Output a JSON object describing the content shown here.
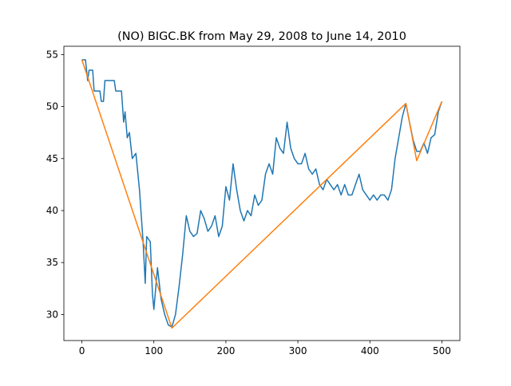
{
  "chart_data": {
    "type": "line",
    "title": "(NO) BIGC.BK from May 29, 2008 to June 14, 2010",
    "xlim": [
      -25,
      525
    ],
    "ylim": [
      27.5,
      55.8
    ],
    "xticks": [
      0,
      100,
      200,
      300,
      400,
      500
    ],
    "yticks": [
      30,
      35,
      40,
      45,
      50,
      55
    ],
    "series": [
      {
        "color": "#1f77b4",
        "x": [
          0,
          5,
          8,
          10,
          15,
          17,
          25,
          27,
          30,
          32,
          45,
          47,
          55,
          58,
          60,
          63,
          66,
          70,
          75,
          80,
          85,
          88,
          90,
          95,
          98,
          100,
          105,
          110,
          115,
          120,
          125,
          130,
          135,
          140,
          145,
          150,
          155,
          160,
          165,
          170,
          175,
          180,
          185,
          190,
          195,
          200,
          205,
          210,
          215,
          220,
          225,
          230,
          235,
          240,
          245,
          250,
          255,
          260,
          265,
          270,
          275,
          280,
          285,
          290,
          295,
          300,
          305,
          310,
          315,
          320,
          325,
          330,
          335,
          340,
          345,
          350,
          355,
          360,
          365,
          370,
          375,
          380,
          385,
          390,
          395,
          400,
          405,
          410,
          415,
          420,
          425,
          430,
          435,
          440,
          445,
          450,
          455,
          460,
          465,
          470,
          475,
          480,
          485,
          490,
          495,
          500
        ],
        "values": [
          54.5,
          54.5,
          52.5,
          53.5,
          53.5,
          51.5,
          51.5,
          50.5,
          50.5,
          52.5,
          52.5,
          51.5,
          51.5,
          48.5,
          49.5,
          47,
          47.5,
          45,
          45.5,
          42,
          37,
          33,
          37.5,
          37,
          32,
          30.5,
          34.5,
          31.5,
          30,
          29,
          28.8,
          30,
          32.7,
          35.8,
          39.5,
          38,
          37.5,
          37.8,
          40,
          39.2,
          38,
          38.5,
          39.5,
          37.5,
          38.5,
          42.3,
          41,
          44.5,
          42,
          40,
          39,
          40,
          39.5,
          41.5,
          40.5,
          41,
          43.5,
          44.5,
          43.5,
          47,
          46,
          45.5,
          48.5,
          46,
          45,
          44.5,
          44.5,
          45.5,
          44,
          43.5,
          44,
          42.5,
          42,
          43,
          42.5,
          42,
          42.5,
          41.5,
          42.5,
          41.5,
          41.5,
          42.5,
          43.5,
          42,
          41.5,
          41,
          41.5,
          41,
          41.5,
          41.5,
          41,
          42,
          45,
          47,
          49,
          50.3,
          48.5,
          46.8,
          45.7,
          45.7,
          46.5,
          45.5,
          47,
          47.3,
          49.5,
          50.5
        ]
      },
      {
        "color": "#ff7f0e",
        "x": [
          0,
          125,
          450,
          465,
          500
        ],
        "values": [
          54.5,
          28.7,
          50.3,
          44.8,
          50.5
        ]
      }
    ]
  }
}
